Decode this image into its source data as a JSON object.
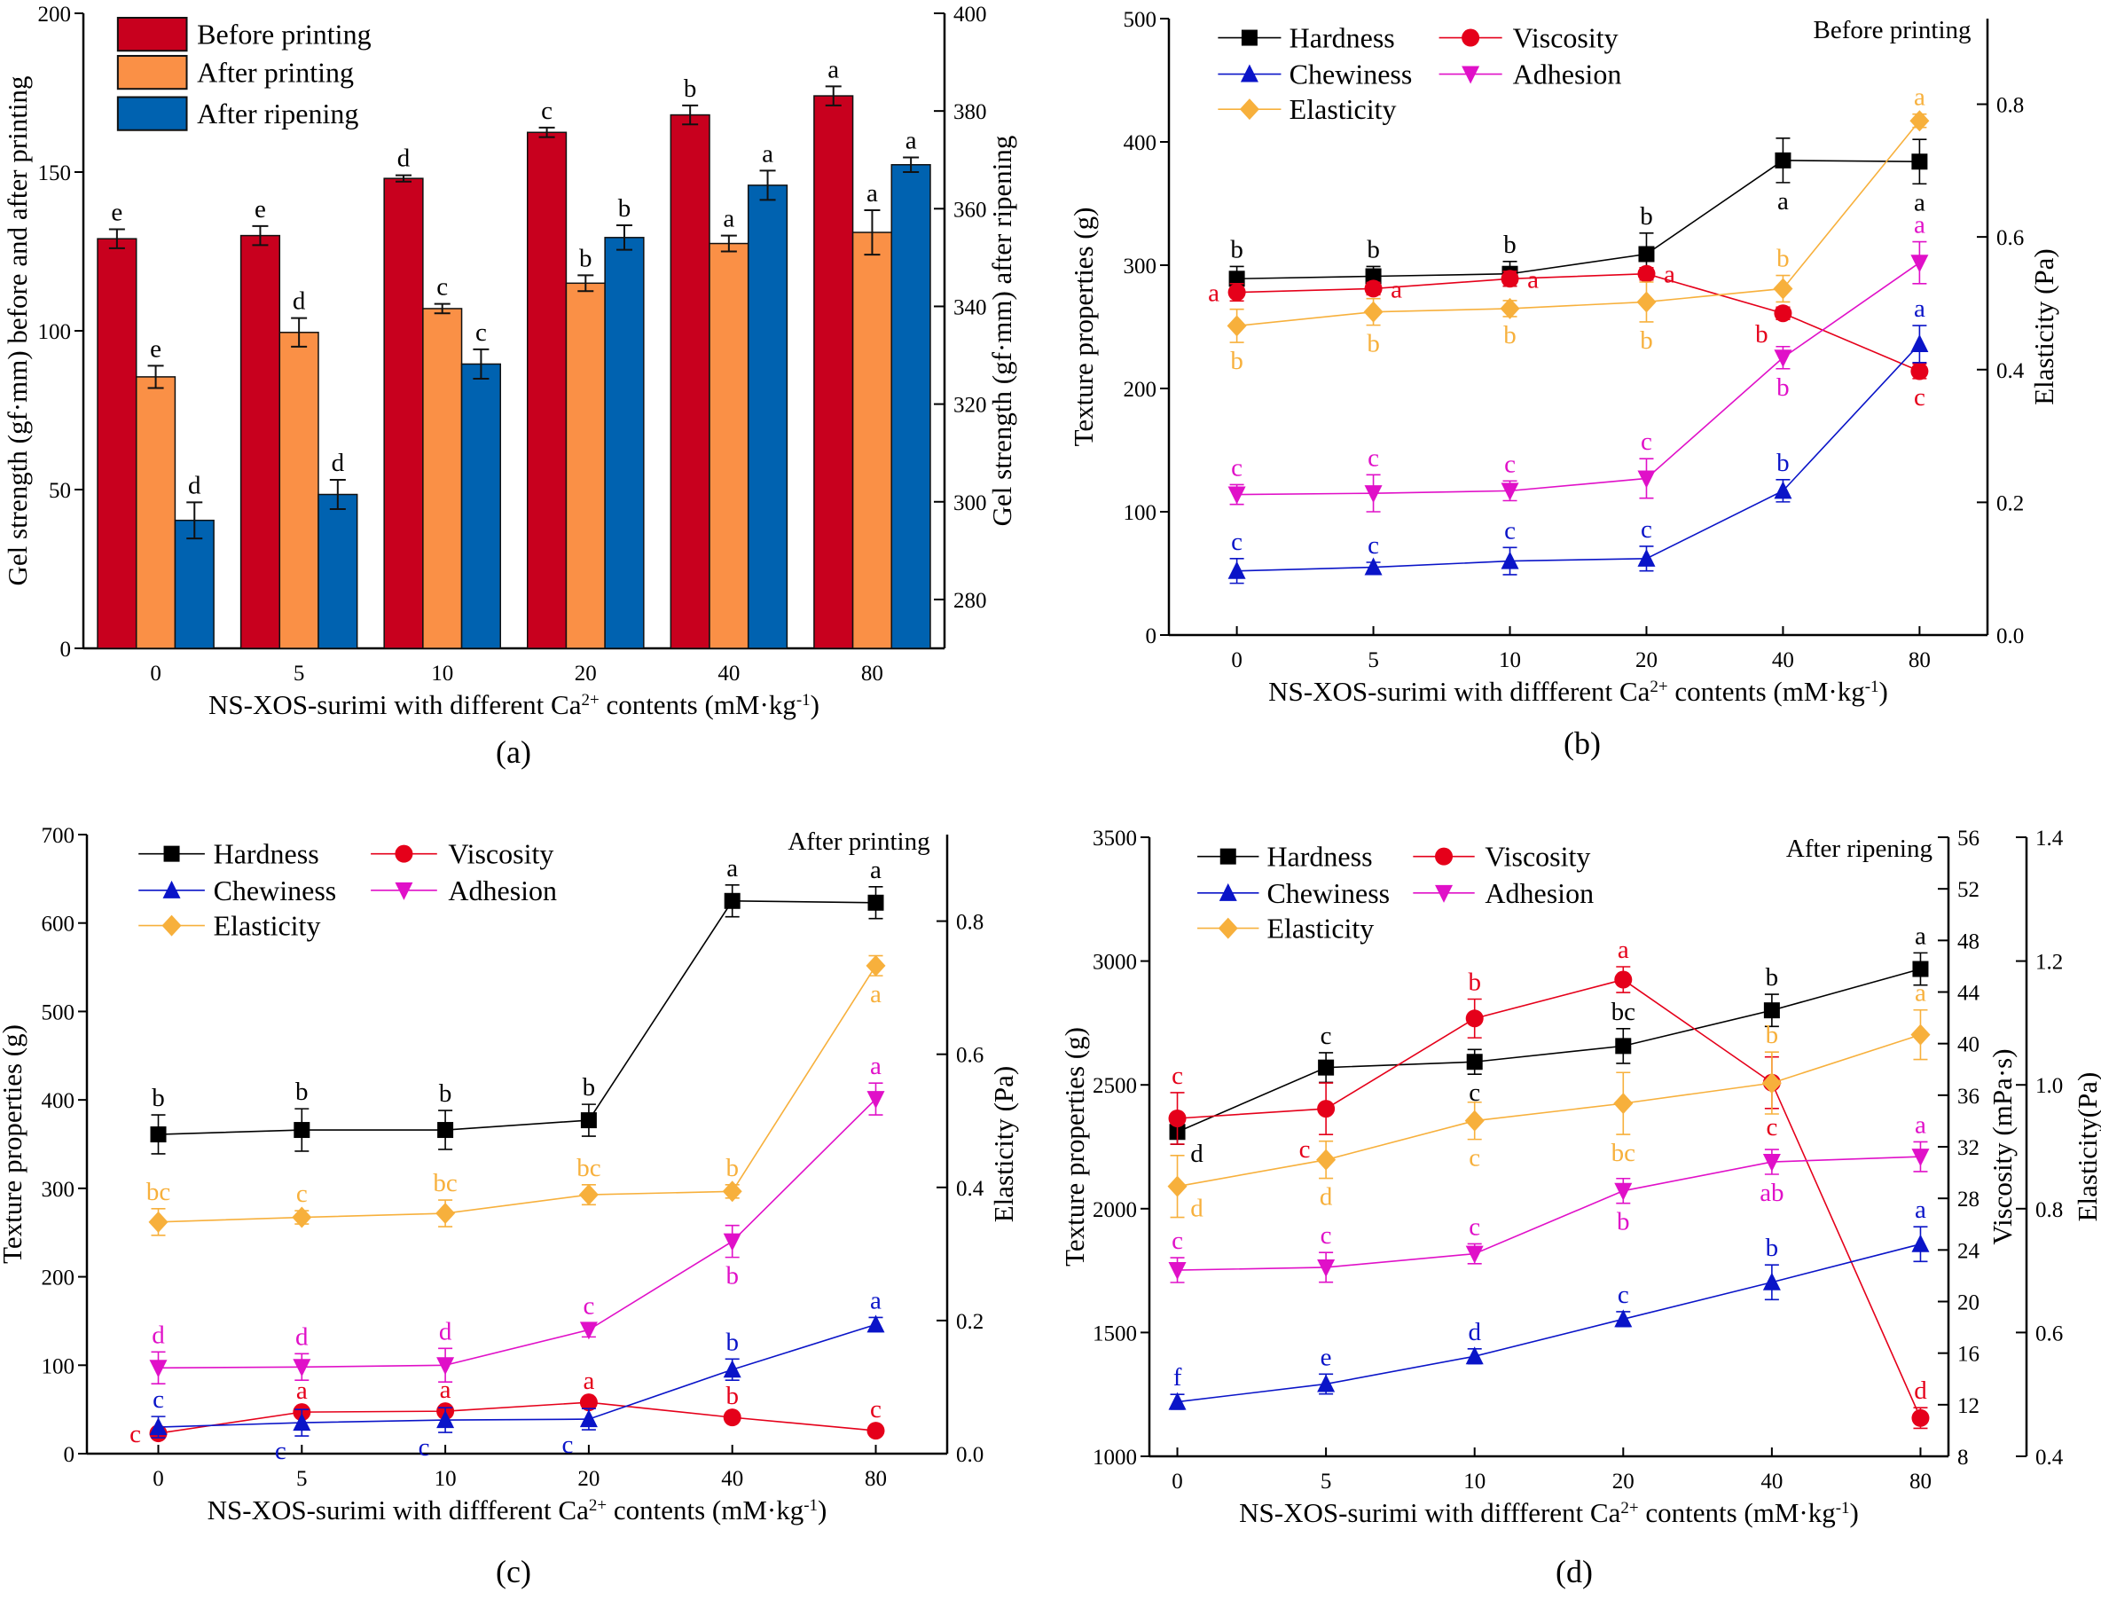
{
  "chart_data": [
    {
      "panel": "(a)",
      "type": "bar",
      "categories": [
        "0",
        "5",
        "10",
        "20",
        "40",
        "80"
      ],
      "xlabel": [
        {
          "t": "NS-XOS-surimi with different Ca"
        },
        {
          "t": "2+",
          "sup": true
        },
        {
          "t": " contents (mM·kg"
        },
        {
          "t": "-1",
          "sup": true
        },
        {
          "t": ")"
        }
      ],
      "annotation": "",
      "axes": [
        {
          "id": "left",
          "label": "Gel strength (gf·mm) before and after printing",
          "lim": [
            0,
            200
          ],
          "ticks": [
            0,
            50,
            100,
            150,
            200
          ],
          "tick_labels": [
            "0",
            "50",
            "100",
            "150",
            "200"
          ]
        },
        {
          "id": "right",
          "label": "Gel strength (gf·mm) after ripening",
          "lim": [
            270,
            400
          ],
          "ticks": [
            280,
            300,
            320,
            340,
            360,
            380,
            400
          ],
          "tick_labels": [
            "280",
            "300",
            "320",
            "340",
            "360",
            "380",
            "400"
          ]
        }
      ],
      "legend": "top-left",
      "series": [
        {
          "name": "Before printing",
          "axis": "left",
          "color": "#c8001e",
          "values": [
            129,
            130,
            148,
            162.5,
            168,
            174
          ],
          "errors": [
            3,
            3,
            1,
            1.5,
            3,
            3
          ],
          "letters": [
            "e",
            "e",
            "d",
            "c",
            "b",
            "a"
          ]
        },
        {
          "name": "After printing",
          "axis": "left",
          "color": "#fa9046",
          "values": [
            85.5,
            99.5,
            107,
            115,
            127.5,
            131
          ],
          "errors": [
            3.5,
            4.5,
            1.5,
            2.5,
            2.5,
            7
          ],
          "letters": [
            "e",
            "d",
            "c",
            "b",
            "a",
            "a"
          ]
        },
        {
          "name": "After ripening",
          "axis": "right",
          "color": "#0062b0",
          "values": [
            296.2,
            301.5,
            328.2,
            354.1,
            364.8,
            369
          ],
          "errors": [
            3.7,
            3,
            3,
            2.5,
            3,
            1.5
          ],
          "letters": [
            "d",
            "d",
            "c",
            "b",
            "a",
            "a"
          ]
        }
      ]
    },
    {
      "panel": "(b)",
      "type": "line",
      "categories": [
        "0",
        "5",
        "10",
        "20",
        "40",
        "80"
      ],
      "xlabel": [
        {
          "t": "NS-XOS-surimi with diffferent Ca"
        },
        {
          "t": "2+",
          "sup": true
        },
        {
          "t": " contents (mM·kg"
        },
        {
          "t": "-1",
          "sup": true
        },
        {
          "t": ")"
        }
      ],
      "annotation": "Before printing",
      "axes": [
        {
          "id": "left",
          "label": "Texture properties (g)",
          "lim": [
            0,
            500
          ],
          "ticks": [
            0,
            100,
            200,
            300,
            400,
            500
          ],
          "tick_labels": [
            "0",
            "100",
            "200",
            "300",
            "400",
            "500"
          ]
        },
        {
          "id": "right",
          "label": "Elasticity (Pa)",
          "lim": [
            0,
            0.929
          ],
          "ticks": [
            0,
            0.2,
            0.4,
            0.6,
            0.8
          ],
          "tick_labels": [
            "0.0",
            "0.2",
            "0.4",
            "0.6",
            "0.8"
          ]
        }
      ],
      "legend": "top-left",
      "series": [
        {
          "name": "Hardness",
          "axis": "left",
          "color": "#000000",
          "marker": "square",
          "values": [
            289,
            291,
            293,
            309,
            385,
            384
          ],
          "errors": [
            10,
            8,
            10,
            17,
            18,
            18
          ],
          "letters": [
            "b",
            "b",
            "b",
            "b",
            "a",
            "a"
          ]
        },
        {
          "name": "Viscosity",
          "axis": "left",
          "color": "#e5001a",
          "marker": "circle",
          "values": [
            278,
            281,
            289,
            293,
            261,
            214
          ],
          "errors": [
            7,
            5,
            6,
            5,
            5,
            6
          ],
          "letters": [
            "a",
            "a",
            "a",
            "a",
            "b",
            "c"
          ]
        },
        {
          "name": "Chewiness",
          "axis": "left",
          "color": "#0a14c8",
          "marker": "triangle-up",
          "values": [
            52,
            55,
            60,
            62,
            117,
            236
          ],
          "errors": [
            10,
            4,
            11,
            10,
            9,
            15
          ],
          "letters": [
            "c",
            "c",
            "c",
            "c",
            "b",
            "a"
          ]
        },
        {
          "name": "Adhesion",
          "axis": "left",
          "color": "#e010c8",
          "marker": "triangle-down",
          "values": [
            114,
            115,
            117,
            127,
            225,
            302
          ],
          "errors": [
            8,
            15,
            8,
            16,
            9,
            17
          ],
          "letters": [
            "c",
            "c",
            "c",
            "c",
            "b",
            "a"
          ]
        },
        {
          "name": "Elasticity",
          "axis": "right",
          "color": "#f7b03c",
          "marker": "diamond",
          "values": [
            0.466,
            0.487,
            0.492,
            0.502,
            0.522,
            0.775
          ],
          "errors": [
            0.025,
            0.02,
            0.012,
            0.03,
            0.02,
            0.01
          ],
          "letters": [
            "b",
            "b",
            "b",
            "b",
            "b",
            "a"
          ]
        }
      ]
    },
    {
      "panel": "(c)",
      "type": "line",
      "categories": [
        "0",
        "5",
        "10",
        "20",
        "40",
        "80"
      ],
      "xlabel": [
        {
          "t": "NS-XOS-surimi with diffferent Ca"
        },
        {
          "t": "2+",
          "sup": true
        },
        {
          "t": " contents (mM·kg"
        },
        {
          "t": "-1",
          "sup": true
        },
        {
          "t": ")"
        }
      ],
      "annotation": "After printing",
      "axes": [
        {
          "id": "left",
          "label": "Texture properties (g)",
          "lim": [
            0,
            700
          ],
          "ticks": [
            0,
            100,
            200,
            300,
            400,
            500,
            600,
            700
          ],
          "tick_labels": [
            "0",
            "100",
            "200",
            "300",
            "400",
            "500",
            "600",
            "700"
          ]
        },
        {
          "id": "right",
          "label": "Elasticity (Pa)",
          "lim": [
            0,
            0.93
          ],
          "ticks": [
            0,
            0.2,
            0.4,
            0.6,
            0.8
          ],
          "tick_labels": [
            "0.0",
            "0.2",
            "0.4",
            "0.6",
            "0.8"
          ]
        }
      ],
      "legend": "top-left",
      "series": [
        {
          "name": "Hardness",
          "axis": "left",
          "color": "#000000",
          "marker": "square",
          "values": [
            361,
            366,
            366,
            377,
            625,
            623
          ],
          "errors": [
            22,
            24,
            22,
            18,
            18,
            18
          ],
          "letters": [
            "b",
            "b",
            "b",
            "b",
            "a",
            "a"
          ]
        },
        {
          "name": "Viscosity",
          "axis": "left",
          "color": "#e5001a",
          "marker": "circle",
          "values": [
            23,
            47,
            48,
            58,
            41,
            26
          ],
          "errors": [
            5,
            5,
            5,
            5,
            5,
            5
          ],
          "letters": [
            "c",
            "a",
            "a",
            "a",
            "b",
            "c"
          ]
        },
        {
          "name": "Chewiness",
          "axis": "left",
          "color": "#0a14c8",
          "marker": "triangle-up",
          "values": [
            30,
            35,
            38,
            39,
            95,
            146
          ],
          "errors": [
            12,
            15,
            14,
            12,
            12,
            8
          ],
          "letters": [
            "c",
            "c",
            "c",
            "c",
            "b",
            "a"
          ]
        },
        {
          "name": "Adhesion",
          "axis": "left",
          "color": "#e010c8",
          "marker": "triangle-down",
          "values": [
            97,
            98,
            100,
            140,
            240,
            401
          ],
          "errors": [
            18,
            15,
            19,
            8,
            18,
            18
          ],
          "letters": [
            "d",
            "d",
            "d",
            "c",
            "b",
            "a"
          ]
        },
        {
          "name": "Elasticity",
          "axis": "right",
          "color": "#f7b03c",
          "marker": "diamond",
          "values": [
            0.348,
            0.355,
            0.361,
            0.389,
            0.394,
            0.733
          ],
          "errors": [
            0.02,
            0.01,
            0.02,
            0.015,
            0.01,
            0.015
          ],
          "letters": [
            "bc",
            "c",
            "bc",
            "bc",
            "b",
            "a"
          ]
        }
      ]
    },
    {
      "panel": "(d)",
      "type": "line",
      "categories": [
        "0",
        "5",
        "10",
        "20",
        "40",
        "80"
      ],
      "xlabel": [
        {
          "t": "NS-XOS-surimi with diffferent Ca"
        },
        {
          "t": "2+",
          "sup": true
        },
        {
          "t": " contents (mM·kg"
        },
        {
          "t": "-1",
          "sup": true
        },
        {
          "t": ")"
        }
      ],
      "annotation": "After ripening",
      "axes": [
        {
          "id": "left",
          "label": "Texture properties (g)",
          "lim": [
            1000,
            3500
          ],
          "ticks": [
            1000,
            1500,
            2000,
            2500,
            3000,
            3500
          ],
          "tick_labels": [
            "1000",
            "1500",
            "2000",
            "2500",
            "3000",
            "3500"
          ]
        },
        {
          "id": "right",
          "label": "Viscosity (mPa·s)",
          "lim": [
            8,
            56
          ],
          "ticks": [
            8,
            12,
            16,
            20,
            24,
            28,
            32,
            36,
            40,
            44,
            48,
            52,
            56
          ],
          "tick_labels": [
            "8",
            "12",
            "16",
            "20",
            "24",
            "28",
            "32",
            "36",
            "40",
            "44",
            "48",
            "52",
            "56"
          ]
        },
        {
          "id": "right2",
          "label": "Elasticity(Pa)",
          "lim": [
            0.4,
            1.4
          ],
          "ticks": [
            0.4,
            0.6,
            0.8,
            1.0,
            1.2,
            1.4
          ],
          "tick_labels": [
            "0.4",
            "0.6",
            "0.8",
            "1.0",
            "1.2",
            "1.4"
          ]
        }
      ],
      "legend": "top-left",
      "series": [
        {
          "name": "Hardness",
          "axis": "left",
          "color": "#000000",
          "marker": "square",
          "values": [
            2310,
            2570,
            2593,
            2657,
            2801,
            2968
          ],
          "errors": [
            50,
            60,
            50,
            70,
            65,
            65
          ],
          "letters": [
            "d",
            "c",
            "c",
            "bc",
            "b",
            "a"
          ]
        },
        {
          "name": "Viscosity",
          "axis": "right",
          "color": "#e5001a",
          "marker": "circle",
          "values": [
            34.2,
            34.95,
            41.95,
            44.96,
            36.97,
            10.97
          ],
          "errors": [
            2,
            2,
            1.5,
            1,
            2,
            0.8
          ],
          "letters": [
            "c",
            "c",
            "b",
            "a",
            "c",
            "d"
          ]
        },
        {
          "name": "Chewiness",
          "axis": "left",
          "color": "#0a14c8",
          "marker": "triangle-up",
          "values": [
            1220,
            1292,
            1404,
            1554,
            1703,
            1857
          ],
          "errors": [
            30,
            40,
            30,
            30,
            70,
            70
          ],
          "letters": [
            "f",
            "e",
            "d",
            "c",
            "b",
            "a"
          ]
        },
        {
          "name": "Adhesion",
          "axis": "left",
          "color": "#e010c8",
          "marker": "triangle-down",
          "values": [
            1752,
            1763,
            1818,
            2072,
            2189,
            2210
          ],
          "errors": [
            50,
            60,
            40,
            50,
            50,
            60
          ],
          "letters": [
            "c",
            "c",
            "c",
            "b",
            "ab",
            "a"
          ]
        },
        {
          "name": "Elasticity",
          "axis": "right2",
          "color": "#f7b03c",
          "marker": "diamond",
          "values": [
            0.836,
            0.879,
            0.942,
            0.97,
            1.003,
            1.081
          ],
          "errors": [
            0.05,
            0.03,
            0.03,
            0.05,
            0.05,
            0.04
          ],
          "letters": [
            "d",
            "d",
            "c",
            "bc",
            "b",
            "a"
          ]
        }
      ]
    }
  ]
}
